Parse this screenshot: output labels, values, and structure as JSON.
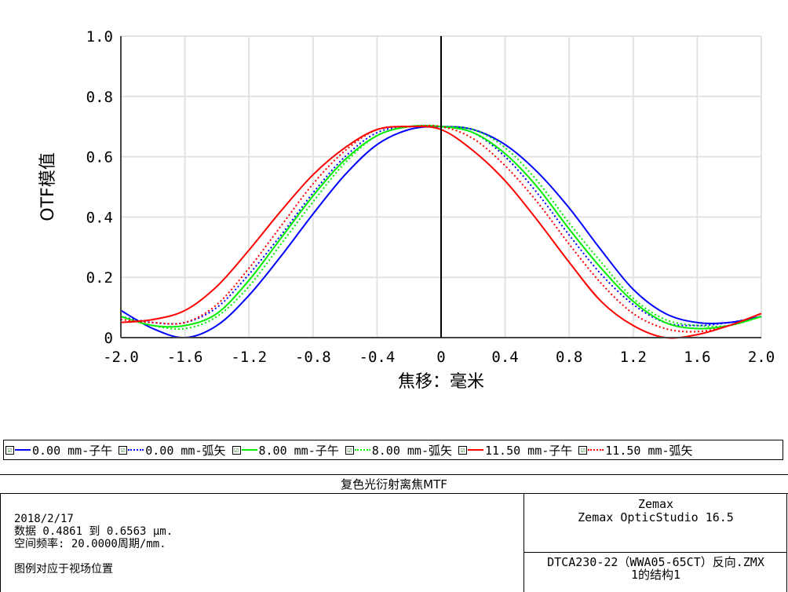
{
  "chart_data": {
    "type": "line",
    "title": "",
    "xlabel": "焦移：毫米",
    "ylabel": "OTF模值",
    "xlim": [
      -2.0,
      2.0
    ],
    "ylim": [
      0,
      1.0
    ],
    "x_ticks": [
      "-2.0",
      "-1.6",
      "-1.2",
      "-0.8",
      "-0.4",
      "0",
      "0.4",
      "0.8",
      "1.2",
      "1.6",
      "2.0"
    ],
    "y_ticks": [
      "0",
      "0.2",
      "0.4",
      "0.6",
      "0.8",
      "1.0"
    ],
    "grid": true,
    "legend_position": "bottom",
    "x": [
      -2.0,
      -1.8,
      -1.6,
      -1.4,
      -1.2,
      -1.0,
      -0.8,
      -0.6,
      -0.4,
      -0.2,
      0.0,
      0.2,
      0.4,
      0.6,
      0.8,
      1.0,
      1.2,
      1.4,
      1.6,
      1.8,
      2.0
    ],
    "series": [
      {
        "name": "0.00 mm-子午",
        "color": "#0000ff",
        "dash": "solid",
        "values": [
          0.09,
          0.03,
          0.0,
          0.04,
          0.14,
          0.27,
          0.41,
          0.54,
          0.64,
          0.69,
          0.7,
          0.69,
          0.64,
          0.55,
          0.43,
          0.29,
          0.16,
          0.08,
          0.05,
          0.05,
          0.07
        ]
      },
      {
        "name": "0.00 mm-弧矢",
        "color": "#0000ff",
        "dash": "dotted",
        "values": [
          0.07,
          0.05,
          0.05,
          0.1,
          0.21,
          0.34,
          0.48,
          0.6,
          0.68,
          0.7,
          0.7,
          0.68,
          0.6,
          0.48,
          0.34,
          0.21,
          0.11,
          0.05,
          0.04,
          0.05,
          0.07
        ]
      },
      {
        "name": "8.00 mm-子午",
        "color": "#00ee00",
        "dash": "solid",
        "values": [
          0.07,
          0.04,
          0.04,
          0.08,
          0.19,
          0.33,
          0.47,
          0.59,
          0.67,
          0.7,
          0.7,
          0.68,
          0.61,
          0.5,
          0.36,
          0.23,
          0.12,
          0.05,
          0.03,
          0.04,
          0.07
        ]
      },
      {
        "name": "8.00 mm-弧矢",
        "color": "#00ee00",
        "dash": "dotted",
        "values": [
          0.07,
          0.04,
          0.03,
          0.07,
          0.17,
          0.31,
          0.45,
          0.58,
          0.67,
          0.7,
          0.7,
          0.69,
          0.63,
          0.52,
          0.38,
          0.25,
          0.13,
          0.06,
          0.04,
          0.04,
          0.07
        ]
      },
      {
        "name": "11.50 mm-子午",
        "color": "#ff0000",
        "dash": "solid",
        "values": [
          0.05,
          0.06,
          0.09,
          0.17,
          0.29,
          0.42,
          0.54,
          0.63,
          0.69,
          0.7,
          0.69,
          0.62,
          0.52,
          0.39,
          0.25,
          0.12,
          0.04,
          0.0,
          0.01,
          0.04,
          0.08
        ]
      },
      {
        "name": "11.50 mm-弧矢",
        "color": "#ff0000",
        "dash": "dotted",
        "values": [
          0.06,
          0.05,
          0.05,
          0.11,
          0.23,
          0.37,
          0.51,
          0.62,
          0.69,
          0.7,
          0.7,
          0.66,
          0.57,
          0.45,
          0.31,
          0.18,
          0.08,
          0.03,
          0.02,
          0.04,
          0.08
        ]
      }
    ]
  },
  "legend_check": "☑",
  "footer": {
    "title": "复色光衍射离焦MTF",
    "date": "2018/2/17",
    "data_line": "数据 0.4861 到 0.6563 µm.",
    "freq_line": "空间频率: 20.0000周期/mm.",
    "note": "图例对应于视场位置",
    "company": "Zemax",
    "product": "Zemax OpticStudio 16.5",
    "file": "DTCA230-22（WWA05-65CT）反向.ZMX",
    "config": "1的结构1"
  }
}
